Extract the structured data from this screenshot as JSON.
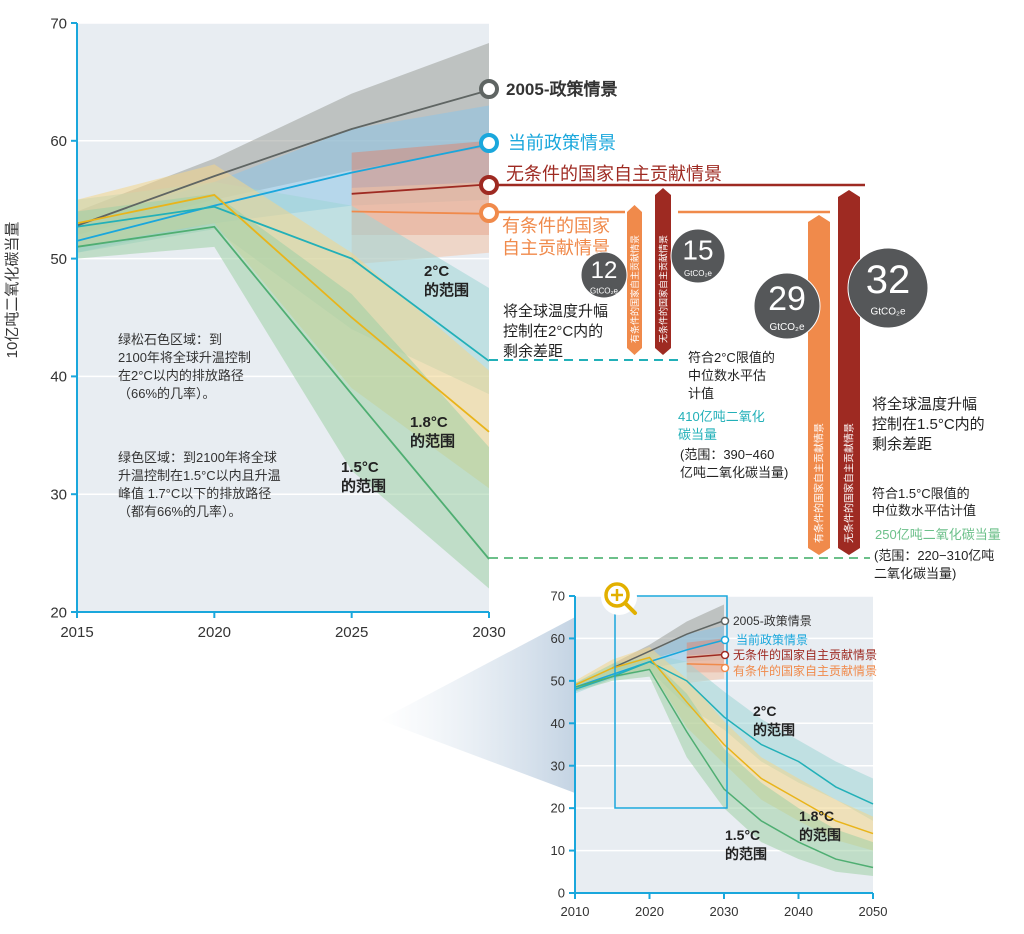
{
  "chart_data": [
    {
      "type": "line",
      "id": "main",
      "ylabel": "10亿吨二氧化碳当量",
      "x": [
        2015,
        2020,
        2025,
        2030
      ],
      "xticks": [
        2015,
        2020,
        2025,
        2030
      ],
      "yticks": [
        20,
        30,
        40,
        50,
        60,
        70
      ],
      "ylim": [
        20,
        70
      ],
      "xlim": [
        2015,
        2030
      ],
      "grid": true,
      "series": [
        {
          "name": "2005-政策情景",
          "color": "#5f6563",
          "band": "#9a9e99",
          "values": [
            52.8,
            57,
            61,
            64.3
          ],
          "lower": [
            52,
            55,
            57.5,
            59.5
          ],
          "upper": [
            54,
            58.5,
            64,
            68.3
          ]
        },
        {
          "name": "当前政策情景",
          "color": "#1aa7dc",
          "band": "#8cc5e6",
          "values": [
            51.5,
            54.5,
            57.3,
            59.7
          ],
          "lower": [
            50.5,
            53,
            54.5,
            55
          ],
          "upper": [
            53,
            56.5,
            61,
            63
          ]
        },
        {
          "name": "无条件的国家自主贡献情景",
          "color": "#9e2a22",
          "band": "#d98a78",
          "values": [
            null,
            null,
            55.5,
            56.3
          ],
          "lower": [
            null,
            null,
            52,
            52
          ],
          "upper": [
            null,
            null,
            59,
            60
          ]
        },
        {
          "name": "有条件的国家自主贡献情景",
          "color": "#f08a4b",
          "band": "#f2c3a6",
          "values": [
            null,
            null,
            54,
            53.8
          ],
          "lower": [
            null,
            null,
            49.5,
            50.5
          ],
          "upper": [
            null,
            null,
            56,
            56.5
          ]
        },
        {
          "name": "2°C的范围",
          "color": "#22b0b8",
          "band": "#9fd6d6",
          "values": [
            52.7,
            54.4,
            50,
            41.3
          ],
          "lower": [
            50.5,
            52.5,
            44,
            38.5
          ],
          "upper": [
            55,
            56.5,
            54.5,
            47.5
          ]
        },
        {
          "name": "1.8°C的范围",
          "color": "#e9b41a",
          "band": "#f2d68a",
          "values": [
            53,
            55.4,
            45,
            35.3
          ],
          "lower": [
            51,
            53,
            39,
            30.5
          ],
          "upper": [
            55,
            58,
            50.5,
            40.5
          ]
        },
        {
          "name": "1.5°C的范围",
          "color": "#4fae72",
          "band": "#9fd0a6",
          "values": [
            51,
            52.7,
            38.5,
            24.5
          ],
          "lower": [
            50,
            51,
            32,
            22
          ],
          "upper": [
            54,
            55.5,
            47,
            34
          ]
        }
      ]
    },
    {
      "type": "line",
      "id": "inset",
      "x": [
        2010,
        2015,
        2020,
        2025,
        2030,
        2035,
        2040,
        2045,
        2050
      ],
      "xticks": [
        2010,
        2020,
        2030,
        2040,
        2050
      ],
      "yticks": [
        0,
        10,
        20,
        30,
        40,
        50,
        60,
        70
      ],
      "ylim": [
        0,
        70
      ],
      "xlim": [
        2010,
        2050
      ],
      "grid": true,
      "series": [
        {
          "name": "2005-政策情景",
          "color": "#5f6563",
          "band": "#9a9e99",
          "values": [
            null,
            53,
            57,
            61,
            64.2,
            null,
            null,
            null,
            null
          ],
          "lower": [
            null,
            52,
            55,
            57.5,
            59.5,
            null,
            null,
            null,
            null
          ],
          "upper": [
            null,
            54,
            58.5,
            64,
            68,
            null,
            null,
            null,
            null
          ]
        },
        {
          "name": "当前政策情景",
          "color": "#1aa7dc",
          "band": "#8cc5e6",
          "values": [
            48.5,
            51.5,
            54.5,
            57.3,
            59.6,
            null,
            null,
            null,
            null
          ],
          "lower": [
            47.5,
            50.5,
            53,
            54.5,
            55,
            null,
            null,
            null,
            null
          ],
          "upper": [
            49.5,
            53,
            56.5,
            61,
            63,
            null,
            null,
            null,
            null
          ]
        },
        {
          "name": "无条件的国家自主贡献情景",
          "color": "#9e2a22",
          "band": "#d98a78",
          "values": [
            null,
            null,
            null,
            55.5,
            56.2,
            null,
            null,
            null,
            null
          ],
          "lower": [
            null,
            null,
            null,
            52,
            52,
            null,
            null,
            null,
            null
          ],
          "upper": [
            null,
            null,
            null,
            59,
            60,
            null,
            null,
            null,
            null
          ]
        },
        {
          "name": "有条件的国家自主贡献情景",
          "color": "#f08a4b",
          "band": "#f2c3a6",
          "values": [
            null,
            null,
            null,
            54,
            53.8,
            null,
            null,
            null,
            null
          ],
          "lower": [
            null,
            null,
            null,
            49.5,
            50.5,
            null,
            null,
            null,
            null
          ],
          "upper": [
            null,
            null,
            null,
            56,
            56.5,
            null,
            null,
            null,
            null
          ]
        },
        {
          "name": "2°C的范围",
          "color": "#22b0b8",
          "band": "#9fd6d6",
          "values": [
            48,
            51,
            54.5,
            50,
            41.5,
            35,
            31,
            25,
            21
          ],
          "lower": [
            47,
            50.5,
            52.5,
            44,
            38.5,
            31,
            26,
            22,
            17
          ],
          "upper": [
            49.5,
            53,
            56.5,
            54.5,
            47.5,
            41,
            36,
            31,
            27
          ]
        },
        {
          "name": "1.8°C的范围",
          "color": "#e9b41a",
          "band": "#f2d68a",
          "values": [
            49,
            53,
            55.5,
            45,
            35,
            27,
            22,
            17,
            14
          ],
          "lower": [
            48,
            51,
            53,
            39,
            30.5,
            22,
            17,
            12.5,
            10
          ],
          "upper": [
            50,
            55,
            58,
            50.5,
            40.5,
            32,
            27,
            22,
            18
          ]
        },
        {
          "name": "1.5°C的范围",
          "color": "#4fae72",
          "band": "#9fd0a6",
          "values": [
            48.5,
            51,
            52.7,
            38,
            24.5,
            17,
            12,
            8,
            6
          ],
          "lower": [
            47.5,
            50,
            51,
            32,
            20,
            12,
            8,
            5,
            4
          ],
          "upper": [
            49.5,
            54,
            55.5,
            47,
            34,
            26,
            20,
            15,
            12
          ]
        }
      ]
    }
  ],
  "labels": {
    "policy2005": "2005-政策情景",
    "current": "当前政策情景",
    "unconditional": "无条件的国家自主贡献情景",
    "conditional_1": "有条件的国家",
    "conditional_2": "自主贡献情景",
    "conditional_full": "有条件的国家自主贡献情景",
    "range2_1": "2°C",
    "range2_2": "的范围",
    "range18_1": "1.8°C",
    "range18_2": "的范围",
    "range15_1": "1.5°C",
    "range15_2": "的范围"
  },
  "notes": {
    "turquoise": [
      "绿松石色区域：到",
      "2100年将全球升温控制",
      "在2°C以内的排放路径",
      "（66%的几率）。"
    ],
    "green": [
      "绿色区域：到2100年将全球",
      "升温控制在1.5°C以内且升温",
      "峰值 1.7°C以下的排放路径",
      "（都有66%的几率）。"
    ],
    "gap2": [
      "将全球温度升幅",
      "控制在2°C内的",
      "剩余差距"
    ],
    "median2": [
      "符合2°C限值的",
      "中位数水平估",
      "计值"
    ],
    "median2_value": [
      "410亿吨二氧化",
      "碳当量"
    ],
    "median2_range": [
      "(范围：390−460",
      "亿吨二氧化碳当量)"
    ],
    "gap15": [
      "将全球温度升幅",
      "控制在1.5°C内的",
      "剩余差距"
    ],
    "median15": [
      "符合1.5°C限值的",
      "中位数水平估计值"
    ],
    "median15_value": "250亿吨二氧化碳当量",
    "median15_range": [
      "(范围：220−310亿吨",
      "二氧化碳当量)"
    ]
  },
  "gaps": [
    {
      "value": "12",
      "unit": "GtCO₂e",
      "scenario": "有条件的国家自主贡献情景"
    },
    {
      "value": "15",
      "unit": "GtCO₂e",
      "scenario": "无条件的国家自主贡献情景"
    },
    {
      "value": "29",
      "unit": "GtCO₂e",
      "scenario": "有条件的国家自主贡献情景"
    },
    {
      "value": "32",
      "unit": "GtCO₂e",
      "scenario": "无条件的国家自主贡献情景"
    }
  ],
  "colors": {
    "plot_bg": "#e8edf2",
    "axis": "#1aa7dc",
    "gap_circle": "#555759"
  }
}
